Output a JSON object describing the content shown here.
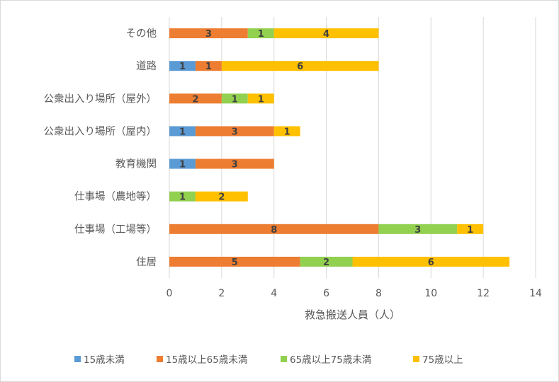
{
  "chart_data": {
    "type": "bar",
    "orientation": "horizontal",
    "stacked": true,
    "categories": [
      "その他",
      "道路",
      "公衆出入り場所（屋外）",
      "公衆出入り場所（屋内）",
      "教育機関",
      "仕事場（農地等）",
      "仕事場（工場等）",
      "住居"
    ],
    "series": [
      {
        "name": "15歳未満",
        "color": "#5b9bd5",
        "values": [
          0,
          1,
          0,
          1,
          1,
          0,
          0,
          0
        ]
      },
      {
        "name": "15歳以上65歳未満",
        "color": "#ed7d31",
        "values": [
          3,
          1,
          2,
          3,
          3,
          0,
          8,
          5
        ]
      },
      {
        "name": "65歳以上75歳未満",
        "color": "#92d050",
        "values": [
          1,
          0,
          1,
          0,
          0,
          1,
          3,
          2
        ]
      },
      {
        "name": "75歳以上",
        "color": "#ffc000",
        "values": [
          4,
          6,
          1,
          1,
          0,
          2,
          1,
          6
        ]
      }
    ],
    "xlabel": "救急搬送人員（人）",
    "ylabel": "",
    "xlim": [
      0,
      14
    ],
    "xticks": [
      0,
      2,
      4,
      6,
      8,
      10,
      12,
      14
    ],
    "grid": true,
    "legend_position": "bottom",
    "data_labels": true
  }
}
